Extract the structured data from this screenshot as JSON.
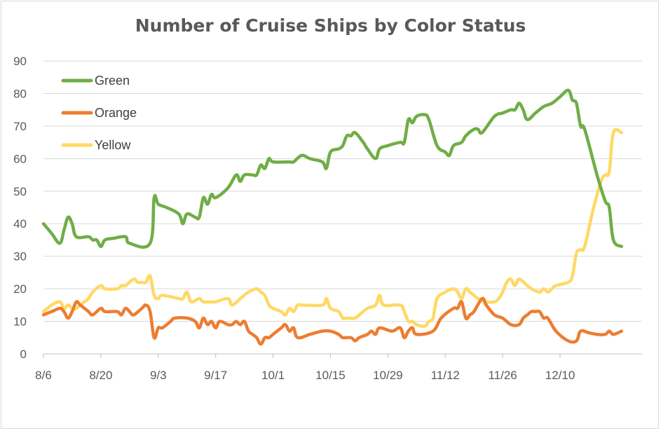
{
  "chart_data": {
    "type": "line",
    "title": "Number of Cruise Ships by Color Status",
    "xlabel": "",
    "ylabel": "",
    "ylim": [
      0,
      90
    ],
    "yticks": [
      0,
      10,
      20,
      30,
      40,
      50,
      60,
      70,
      80,
      90
    ],
    "xlim": [
      "8/6",
      "12/30"
    ],
    "xticks": [
      "8/6",
      "8/20",
      "9/3",
      "9/17",
      "10/1",
      "10/15",
      "10/29",
      "11/12",
      "11/26",
      "12/10"
    ],
    "grid": {
      "horizontal": true,
      "vertical": false
    },
    "legend": {
      "placement": "top-left"
    },
    "series": [
      {
        "name": "Green",
        "color": "#70ad47",
        "points": [
          [
            "8/6",
            40
          ],
          [
            "8/8",
            37
          ],
          [
            "8/10",
            34
          ],
          [
            "8/11",
            38
          ],
          [
            "8/12",
            42
          ],
          [
            "8/13",
            40
          ],
          [
            "8/14",
            36
          ],
          [
            "8/17",
            36
          ],
          [
            "8/18",
            35
          ],
          [
            "8/19",
            35
          ],
          [
            "8/20",
            33
          ],
          [
            "8/21",
            35
          ],
          [
            "8/23",
            35.5
          ],
          [
            "8/26",
            36
          ],
          [
            "8/27",
            34
          ],
          [
            "9/1",
            34
          ],
          [
            "9/2",
            48
          ],
          [
            "9/3",
            46
          ],
          [
            "9/5",
            45
          ],
          [
            "9/8",
            43
          ],
          [
            "9/9",
            40
          ],
          [
            "9/10",
            43
          ],
          [
            "9/12",
            42
          ],
          [
            "9/13",
            42
          ],
          [
            "9/14",
            48
          ],
          [
            "9/15",
            46
          ],
          [
            "9/16",
            49
          ],
          [
            "9/17",
            48
          ],
          [
            "9/20",
            51
          ],
          [
            "9/22",
            55
          ],
          [
            "9/23",
            53
          ],
          [
            "9/24",
            55
          ],
          [
            "9/26",
            55
          ],
          [
            "9/27",
            55
          ],
          [
            "9/28",
            58
          ],
          [
            "9/29",
            57
          ],
          [
            "9/30",
            60
          ],
          [
            "10/1",
            59
          ],
          [
            "10/5",
            59
          ],
          [
            "10/6",
            59
          ],
          [
            "10/8",
            61
          ],
          [
            "10/10",
            60
          ],
          [
            "10/13",
            59
          ],
          [
            "10/14",
            57
          ],
          [
            "10/15",
            62
          ],
          [
            "10/17",
            63
          ],
          [
            "10/18",
            64
          ],
          [
            "10/19",
            67
          ],
          [
            "10/20",
            67
          ],
          [
            "10/21",
            68
          ],
          [
            "10/23",
            65
          ],
          [
            "10/24",
            63
          ],
          [
            "10/26",
            60
          ],
          [
            "10/27",
            63
          ],
          [
            "10/29",
            64
          ],
          [
            "11/1",
            65
          ],
          [
            "11/2",
            65
          ],
          [
            "11/3",
            72
          ],
          [
            "11/4",
            71
          ],
          [
            "11/5",
            73
          ],
          [
            "11/7",
            73.5
          ],
          [
            "11/8",
            72
          ],
          [
            "11/10",
            64
          ],
          [
            "11/12",
            62
          ],
          [
            "11/13",
            61
          ],
          [
            "11/14",
            64
          ],
          [
            "11/16",
            65
          ],
          [
            "11/17",
            67
          ],
          [
            "11/19",
            69
          ],
          [
            "11/20",
            69
          ],
          [
            "11/21",
            68
          ],
          [
            "11/24",
            73
          ],
          [
            "11/26",
            74
          ],
          [
            "11/28",
            75
          ],
          [
            "11/29",
            75
          ],
          [
            "11/30",
            77
          ],
          [
            "12/1",
            75
          ],
          [
            "12/2",
            72
          ],
          [
            "12/4",
            74
          ],
          [
            "12/6",
            76
          ],
          [
            "12/8",
            77
          ],
          [
            "12/10",
            79
          ],
          [
            "12/12",
            81
          ],
          [
            "12/13",
            78
          ],
          [
            "12/14",
            77
          ],
          [
            "12/15",
            70
          ],
          [
            "12/16",
            69
          ],
          [
            "12/19",
            55
          ],
          [
            "12/21",
            47
          ],
          [
            "12/22",
            45
          ],
          [
            "12/23",
            35
          ],
          [
            "12/25",
            33
          ]
        ]
      },
      {
        "name": "Orange",
        "color": "#ed7d31",
        "points": [
          [
            "8/6",
            12
          ],
          [
            "8/8",
            13
          ],
          [
            "8/10",
            14
          ],
          [
            "8/11",
            13
          ],
          [
            "8/12",
            11
          ],
          [
            "8/13",
            13
          ],
          [
            "8/14",
            16
          ],
          [
            "8/15",
            15
          ],
          [
            "8/17",
            13
          ],
          [
            "8/18",
            12
          ],
          [
            "8/20",
            14
          ],
          [
            "8/21",
            13
          ],
          [
            "8/24",
            13
          ],
          [
            "8/25",
            12
          ],
          [
            "8/26",
            14
          ],
          [
            "8/27",
            13
          ],
          [
            "8/28",
            12
          ],
          [
            "8/30",
            14
          ],
          [
            "8/31",
            15
          ],
          [
            "9/1",
            13
          ],
          [
            "9/2",
            5
          ],
          [
            "9/3",
            8
          ],
          [
            "9/4",
            8
          ],
          [
            "9/6",
            10
          ],
          [
            "9/7",
            11
          ],
          [
            "9/10",
            11
          ],
          [
            "9/12",
            10
          ],
          [
            "9/13",
            8
          ],
          [
            "9/14",
            11
          ],
          [
            "9/15",
            9
          ],
          [
            "9/16",
            10
          ],
          [
            "9/17",
            8
          ],
          [
            "9/18",
            10
          ],
          [
            "9/20",
            9
          ],
          [
            "9/21",
            9
          ],
          [
            "9/22",
            10
          ],
          [
            "9/23",
            9
          ],
          [
            "9/24",
            10
          ],
          [
            "9/25",
            7
          ],
          [
            "9/26",
            6
          ],
          [
            "9/27",
            5
          ],
          [
            "9/28",
            3
          ],
          [
            "9/29",
            5
          ],
          [
            "9/30",
            5
          ],
          [
            "10/1",
            6
          ],
          [
            "10/3",
            8
          ],
          [
            "10/4",
            9
          ],
          [
            "10/5",
            7
          ],
          [
            "10/6",
            8
          ],
          [
            "10/7",
            5
          ],
          [
            "10/10",
            6
          ],
          [
            "10/13",
            7
          ],
          [
            "10/15",
            7
          ],
          [
            "10/17",
            6
          ],
          [
            "10/18",
            5
          ],
          [
            "10/20",
            5
          ],
          [
            "10/21",
            4
          ],
          [
            "10/22",
            5
          ],
          [
            "10/24",
            6
          ],
          [
            "10/25",
            7
          ],
          [
            "10/26",
            6
          ],
          [
            "10/27",
            8
          ],
          [
            "10/30",
            7
          ],
          [
            "11/1",
            8
          ],
          [
            "11/2",
            5
          ],
          [
            "11/3",
            7
          ],
          [
            "11/4",
            8
          ],
          [
            "11/5",
            6
          ],
          [
            "11/9",
            7
          ],
          [
            "11/11",
            11
          ],
          [
            "11/14",
            14
          ],
          [
            "11/15",
            14
          ],
          [
            "11/16",
            16
          ],
          [
            "11/17",
            11
          ],
          [
            "11/18",
            12
          ],
          [
            "11/19",
            13
          ],
          [
            "11/21",
            17
          ],
          [
            "11/22",
            15
          ],
          [
            "11/24",
            12
          ],
          [
            "11/26",
            11
          ],
          [
            "11/28",
            9
          ],
          [
            "11/30",
            9
          ],
          [
            "12/1",
            11
          ],
          [
            "12/2",
            12
          ],
          [
            "12/3",
            13
          ],
          [
            "12/4",
            13
          ],
          [
            "12/5",
            13
          ],
          [
            "12/6",
            11
          ],
          [
            "12/7",
            11
          ],
          [
            "12/9",
            7
          ],
          [
            "12/12",
            4
          ],
          [
            "12/14",
            4
          ],
          [
            "12/15",
            7
          ],
          [
            "12/17",
            6.5
          ],
          [
            "12/19",
            6
          ],
          [
            "12/21",
            6
          ],
          [
            "12/22",
            7
          ],
          [
            "12/23",
            6
          ],
          [
            "12/25",
            7
          ]
        ]
      },
      {
        "name": "Yellow",
        "color": "#ffd966",
        "points": [
          [
            "8/6",
            13
          ],
          [
            "8/8",
            15
          ],
          [
            "8/10",
            16
          ],
          [
            "8/11",
            14
          ],
          [
            "8/12",
            15
          ],
          [
            "8/13",
            14
          ],
          [
            "8/14",
            14
          ],
          [
            "8/16",
            16
          ],
          [
            "8/17",
            17
          ],
          [
            "8/18",
            19
          ],
          [
            "8/20",
            21
          ],
          [
            "8/21",
            20
          ],
          [
            "8/24",
            20
          ],
          [
            "8/25",
            21
          ],
          [
            "8/26",
            21
          ],
          [
            "8/28",
            23
          ],
          [
            "8/29",
            22
          ],
          [
            "8/30",
            22
          ],
          [
            "8/31",
            22
          ],
          [
            "9/1",
            24
          ],
          [
            "9/2",
            18
          ],
          [
            "9/3",
            17
          ],
          [
            "9/4",
            18
          ],
          [
            "9/8",
            17
          ],
          [
            "9/9",
            17
          ],
          [
            "9/10",
            19
          ],
          [
            "9/11",
            16
          ],
          [
            "9/13",
            17
          ],
          [
            "9/14",
            16
          ],
          [
            "9/16",
            16
          ],
          [
            "9/17",
            16
          ],
          [
            "9/20",
            17
          ],
          [
            "9/21",
            15
          ],
          [
            "9/23",
            17
          ],
          [
            "9/25",
            19
          ],
          [
            "9/27",
            20
          ],
          [
            "9/28",
            19
          ],
          [
            "9/29",
            18
          ],
          [
            "9/30",
            15
          ],
          [
            "10/1",
            14
          ],
          [
            "10/3",
            13
          ],
          [
            "10/4",
            12
          ],
          [
            "10/5",
            14
          ],
          [
            "10/6",
            13
          ],
          [
            "10/7",
            15
          ],
          [
            "10/8",
            15
          ],
          [
            "10/13",
            15
          ],
          [
            "10/14",
            17
          ],
          [
            "10/15",
            14
          ],
          [
            "10/17",
            13
          ],
          [
            "10/18",
            11
          ],
          [
            "10/19",
            11
          ],
          [
            "10/21",
            11
          ],
          [
            "10/22",
            12
          ],
          [
            "10/24",
            14
          ],
          [
            "10/26",
            15
          ],
          [
            "10/27",
            18
          ],
          [
            "10/28",
            15
          ],
          [
            "11/1",
            15
          ],
          [
            "11/2",
            13
          ],
          [
            "11/3",
            10
          ],
          [
            "11/4",
            10
          ],
          [
            "11/5",
            9
          ],
          [
            "11/7",
            8.5
          ],
          [
            "11/8",
            10
          ],
          [
            "11/9",
            11
          ],
          [
            "11/10",
            17
          ],
          [
            "11/12",
            19
          ],
          [
            "11/14",
            20
          ],
          [
            "11/15",
            19
          ],
          [
            "11/16",
            17
          ],
          [
            "11/17",
            20
          ],
          [
            "11/18",
            19
          ],
          [
            "11/19",
            18
          ],
          [
            "11/20",
            17
          ],
          [
            "11/22",
            16
          ],
          [
            "11/24",
            16
          ],
          [
            "11/25",
            17
          ],
          [
            "11/26",
            19
          ],
          [
            "11/27",
            22
          ],
          [
            "11/28",
            23
          ],
          [
            "11/29",
            21
          ],
          [
            "11/30",
            23
          ],
          [
            "12/2",
            21
          ],
          [
            "12/3",
            20
          ],
          [
            "12/5",
            19
          ],
          [
            "12/6",
            20
          ],
          [
            "12/7",
            19
          ],
          [
            "12/8",
            20
          ],
          [
            "12/9",
            21
          ],
          [
            "12/12",
            22
          ],
          [
            "12/13",
            24
          ],
          [
            "12/14",
            31
          ],
          [
            "12/15",
            32
          ],
          [
            "12/16",
            33
          ],
          [
            "12/18",
            44
          ],
          [
            "12/20",
            53
          ],
          [
            "12/21",
            55
          ],
          [
            "12/22",
            56
          ],
          [
            "12/23",
            68
          ],
          [
            "12/25",
            68
          ]
        ]
      }
    ]
  }
}
